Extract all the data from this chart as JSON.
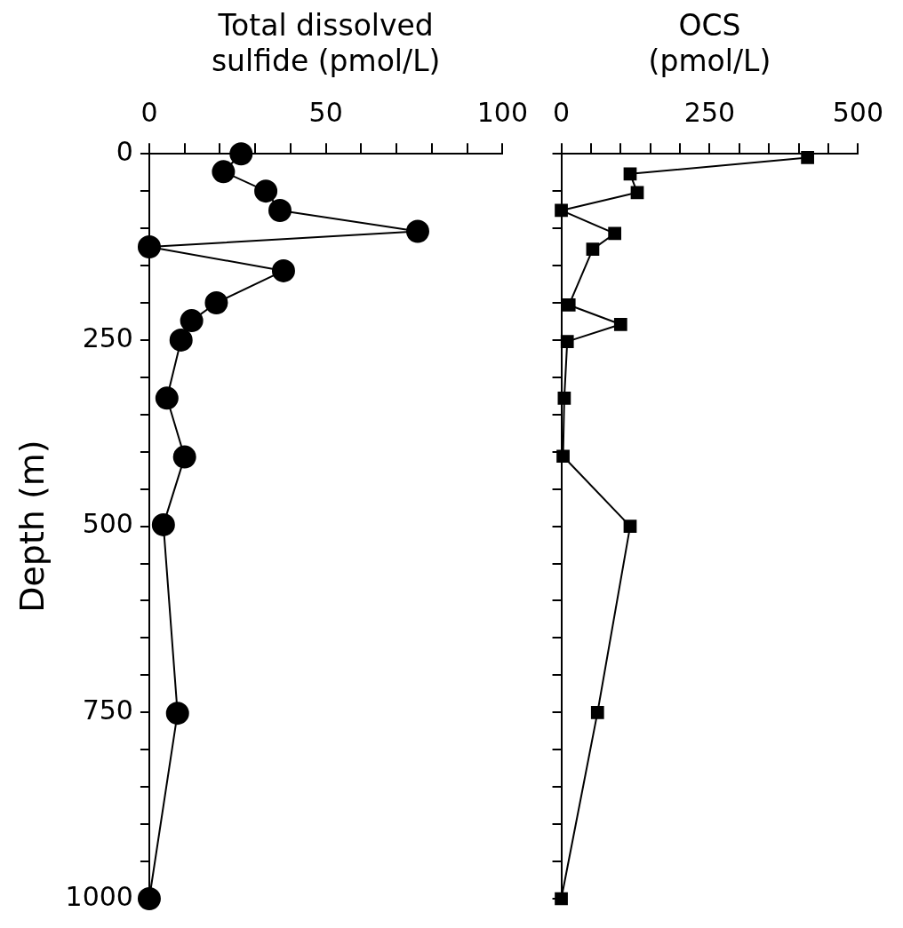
{
  "chart_data": [
    {
      "type": "line",
      "xlabel": "Total dissolved sulfide (pmol/L)",
      "ylabel": "Depth (m)",
      "xlim": [
        0,
        100
      ],
      "xticks": [
        0,
        {
          "value": 10,
          "label": null
        },
        {
          "value": 20,
          "label": null
        },
        {
          "value": 30,
          "label": null
        },
        {
          "value": 40,
          "label": null
        },
        50,
        {
          "value": 60,
          "label": null
        },
        {
          "value": 70,
          "label": null
        },
        {
          "value": 80,
          "label": null
        },
        {
          "value": 90,
          "label": null
        },
        100
      ],
      "ylim": [
        1000,
        0
      ],
      "yticks": [
        0,
        {
          "value": 50,
          "label": null
        },
        {
          "value": 100,
          "label": null
        },
        {
          "value": 150,
          "label": null
        },
        {
          "value": 200,
          "label": null
        },
        250,
        {
          "value": 300,
          "label": null
        },
        {
          "value": 350,
          "label": null
        },
        {
          "value": 400,
          "label": null
        },
        {
          "value": 450,
          "label": null
        },
        500,
        {
          "value": 550,
          "label": null
        },
        {
          "value": 600,
          "label": null
        },
        {
          "value": 650,
          "label": null
        },
        {
          "value": 700,
          "label": null
        },
        750,
        {
          "value": 800,
          "label": null
        },
        {
          "value": 850,
          "label": null
        },
        {
          "value": 900,
          "label": null
        },
        {
          "value": 950,
          "label": null
        },
        1000
      ],
      "grid": false,
      "legend": false,
      "marker": "circle",
      "line_style": "solid",
      "series": [
        {
          "color": "#000000",
          "x": [
            26,
            21,
            33,
            37,
            76,
            0,
            38,
            19,
            12,
            9,
            5,
            10,
            4,
            8,
            0
          ],
          "values": [
            0,
            24,
            50,
            76,
            104,
            125,
            157,
            200,
            224,
            250,
            328,
            407,
            498,
            751,
            1000
          ]
        }
      ]
    },
    {
      "type": "line",
      "xlabel": "OCS (pmol/L)",
      "xlim": [
        0,
        500
      ],
      "xticks": [
        0,
        {
          "value": 50,
          "label": null
        },
        {
          "value": 100,
          "label": null
        },
        {
          "value": 150,
          "label": null
        },
        {
          "value": 200,
          "label": null
        },
        250,
        {
          "value": 300,
          "label": null
        },
        {
          "value": 350,
          "label": null
        },
        {
          "value": 400,
          "label": null
        },
        {
          "value": 450,
          "label": null
        },
        500
      ],
      "ylim": [
        1000,
        0
      ],
      "yticks": [
        0,
        {
          "value": 50,
          "label": null
        },
        {
          "value": 100,
          "label": null
        },
        {
          "value": 150,
          "label": null
        },
        {
          "value": 200,
          "label": null
        },
        {
          "value": 250,
          "label": null
        },
        {
          "value": 300,
          "label": null
        },
        {
          "value": 350,
          "label": null
        },
        {
          "value": 400,
          "label": null
        },
        {
          "value": 450,
          "label": null
        },
        {
          "value": 500,
          "label": null
        },
        {
          "value": 550,
          "label": null
        },
        {
          "value": 600,
          "label": null
        },
        {
          "value": 650,
          "label": null
        },
        {
          "value": 700,
          "label": null
        },
        {
          "value": 750,
          "label": null
        },
        {
          "value": 800,
          "label": null
        },
        {
          "value": 850,
          "label": null
        },
        {
          "value": 900,
          "label": null
        },
        {
          "value": 950,
          "label": null
        },
        {
          "value": 1000,
          "label": null
        }
      ],
      "tick_labels": "x",
      "grid": false,
      "legend": false,
      "marker": "square",
      "line_style": "solid",
      "series": [
        {
          "color": "#000000",
          "x": [
            415,
            116,
            128,
            0,
            90,
            53,
            13,
            100,
            10,
            5,
            3,
            116,
            61,
            0
          ],
          "values": [
            5,
            27,
            52,
            76,
            107,
            128,
            203,
            229,
            252,
            328,
            406,
            500,
            750,
            1000
          ]
        }
      ]
    }
  ]
}
